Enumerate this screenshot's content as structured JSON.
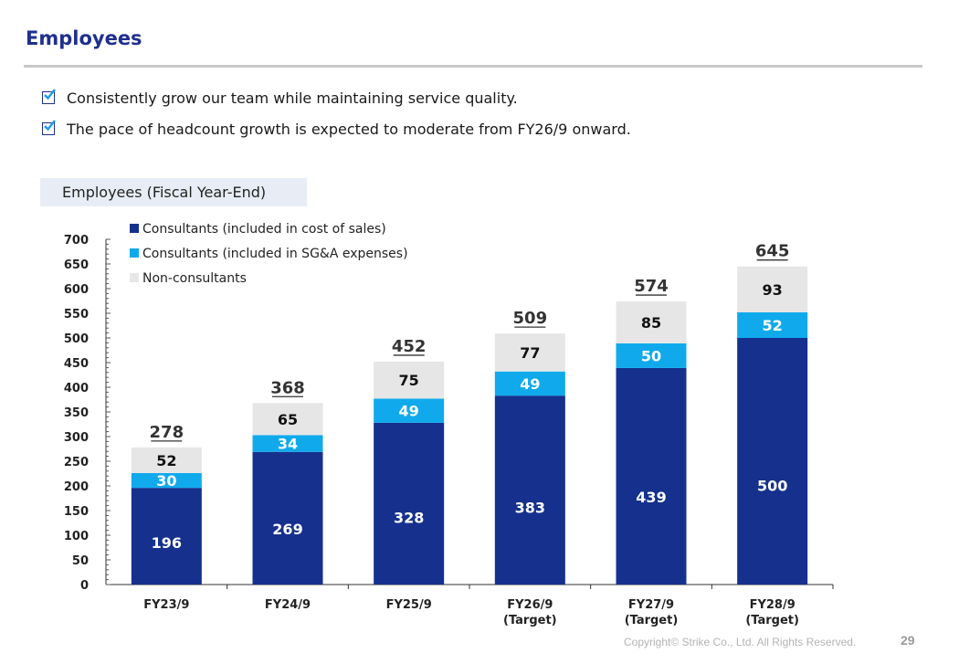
{
  "page": {
    "title": "Employees",
    "bullets": [
      "Consistently grow our team while maintaining service quality.",
      "The pace of headcount growth is expected to moderate from FY26/9 onward."
    ],
    "chart_heading": "Employees (Fiscal Year-End)",
    "footer": "Copyright© Strike Co., Ltd. All Rights Reserved.",
    "page_number": "29"
  },
  "chart_data": {
    "type": "bar",
    "stacked": true,
    "categories": [
      "FY23/9",
      "FY24/9",
      "FY25/9",
      "FY26/9\n(Target)",
      "FY27/9\n(Target)",
      "FY28/9\n(Target)"
    ],
    "series": [
      {
        "name": "Consultants (included in cost of sales)",
        "color": "#15318d",
        "values": [
          196,
          269,
          328,
          383,
          439,
          500
        ]
      },
      {
        "name": "Consultants (included in SG&A expenses)",
        "color": "#10aaec",
        "values": [
          30,
          34,
          49,
          49,
          50,
          52
        ]
      },
      {
        "name": "Non-consultants",
        "color": "#e6e6e6",
        "values": [
          52,
          65,
          75,
          77,
          85,
          93
        ]
      }
    ],
    "totals": [
      278,
      368,
      452,
      509,
      574,
      645
    ],
    "ylim": [
      0,
      700
    ],
    "yticks": [
      0,
      50,
      100,
      150,
      200,
      250,
      300,
      350,
      400,
      450,
      500,
      550,
      600,
      650,
      700
    ],
    "legend_position": "top-left"
  }
}
